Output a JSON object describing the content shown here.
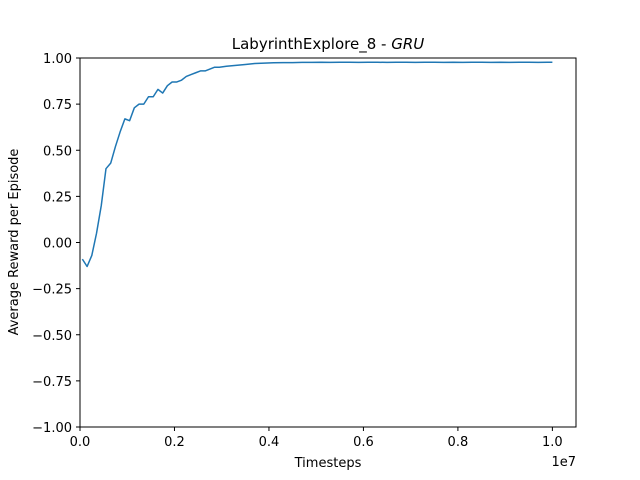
{
  "chart_data": {
    "type": "line",
    "title": "LabyrinthExplore_8 - ",
    "title_emphasis": "GRU",
    "xlabel": "Timesteps",
    "ylabel": "Average Reward per Episode",
    "x_offset_label": "1e7",
    "xlim": [
      0,
      10500000
    ],
    "ylim": [
      -1.0,
      1.0
    ],
    "x_ticks": [
      0,
      2000000,
      4000000,
      6000000,
      8000000,
      10000000
    ],
    "x_tick_labels": [
      "0.0",
      "0.2",
      "0.4",
      "0.6",
      "0.8",
      "1.0"
    ],
    "y_ticks": [
      -1.0,
      -0.75,
      -0.5,
      -0.25,
      0.0,
      0.25,
      0.5,
      0.75,
      1.0
    ],
    "y_tick_labels": [
      "−1.00",
      "−0.75",
      "−0.50",
      "−0.25",
      "0.00",
      "0.25",
      "0.50",
      "0.75",
      "1.00"
    ],
    "grid": false,
    "series": [
      {
        "color": "#1f77b4",
        "x": [
          50000,
          150000,
          250000,
          350000,
          450000,
          550000,
          650000,
          750000,
          850000,
          950000,
          1050000,
          1150000,
          1250000,
          1350000,
          1450000,
          1550000,
          1650000,
          1750000,
          1850000,
          1950000,
          2050000,
          2150000,
          2250000,
          2350000,
          2450000,
          2550000,
          2650000,
          2750000,
          2850000,
          2950000,
          3100000,
          3300000,
          3500000,
          3700000,
          3900000,
          4100000,
          4300000,
          4500000,
          4700000,
          4900000,
          5100000,
          5300000,
          5500000,
          5700000,
          5900000,
          6100000,
          6300000,
          6500000,
          6700000,
          6900000,
          7100000,
          7300000,
          7500000,
          7700000,
          7900000,
          8100000,
          8300000,
          8500000,
          8700000,
          8900000,
          9100000,
          9300000,
          9500000,
          9700000,
          9900000,
          10000000
        ],
        "y": [
          -0.09,
          -0.13,
          -0.07,
          0.05,
          0.2,
          0.4,
          0.43,
          0.52,
          0.6,
          0.67,
          0.66,
          0.73,
          0.75,
          0.75,
          0.79,
          0.79,
          0.83,
          0.81,
          0.85,
          0.87,
          0.87,
          0.88,
          0.9,
          0.91,
          0.92,
          0.93,
          0.93,
          0.94,
          0.95,
          0.95,
          0.955,
          0.96,
          0.965,
          0.97,
          0.972,
          0.974,
          0.975,
          0.975,
          0.976,
          0.976,
          0.977,
          0.976,
          0.977,
          0.977,
          0.976,
          0.977,
          0.977,
          0.976,
          0.977,
          0.977,
          0.976,
          0.977,
          0.977,
          0.976,
          0.977,
          0.976,
          0.977,
          0.977,
          0.976,
          0.977,
          0.976,
          0.977,
          0.977,
          0.976,
          0.977,
          0.977
        ]
      }
    ]
  }
}
